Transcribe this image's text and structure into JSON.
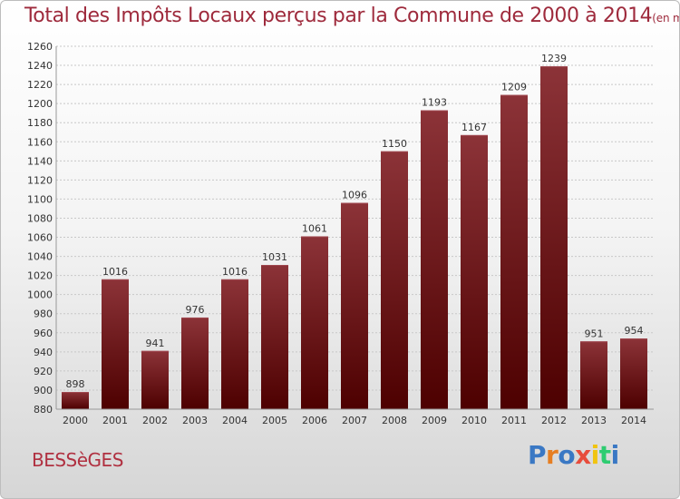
{
  "header": {
    "title": "Total des Impôts Locaux perçus par la Commune de 2000 à 2014",
    "unit": "(en milliers d'€)"
  },
  "commune": "BESSèGES",
  "logo": {
    "letters": [
      "P",
      "r",
      "o",
      "x",
      "i",
      "t",
      "i"
    ],
    "colors": [
      "#3a78c4",
      "#e67e22",
      "#3a78c4",
      "#e74c3c",
      "#f1c40f",
      "#2ecc71",
      "#3a78c4"
    ]
  },
  "colors": {
    "bar_top": "#8c3338",
    "bar_bottom": "#4d0000",
    "grid": "#c8c8c8",
    "axis_text": "#333333",
    "title": "#9e2a3c"
  },
  "chart_data": {
    "type": "bar",
    "title": "Total des Impôts Locaux perçus par la Commune de 2000 à 2014",
    "xlabel": "",
    "ylabel": "",
    "categories": [
      "2000",
      "2001",
      "2002",
      "2003",
      "2004",
      "2005",
      "2006",
      "2007",
      "2008",
      "2009",
      "2010",
      "2011",
      "2012",
      "2013",
      "2014"
    ],
    "values": [
      898,
      1016,
      941,
      976,
      1016,
      1031,
      1061,
      1096,
      1150,
      1193,
      1167,
      1209,
      1239,
      951,
      954
    ],
    "ylim": [
      880,
      1260
    ],
    "yticks": [
      880,
      900,
      920,
      940,
      960,
      980,
      1000,
      1020,
      1040,
      1060,
      1080,
      1100,
      1120,
      1140,
      1160,
      1180,
      1200,
      1220,
      1240,
      1260
    ],
    "grid": true,
    "data_labels": true
  }
}
